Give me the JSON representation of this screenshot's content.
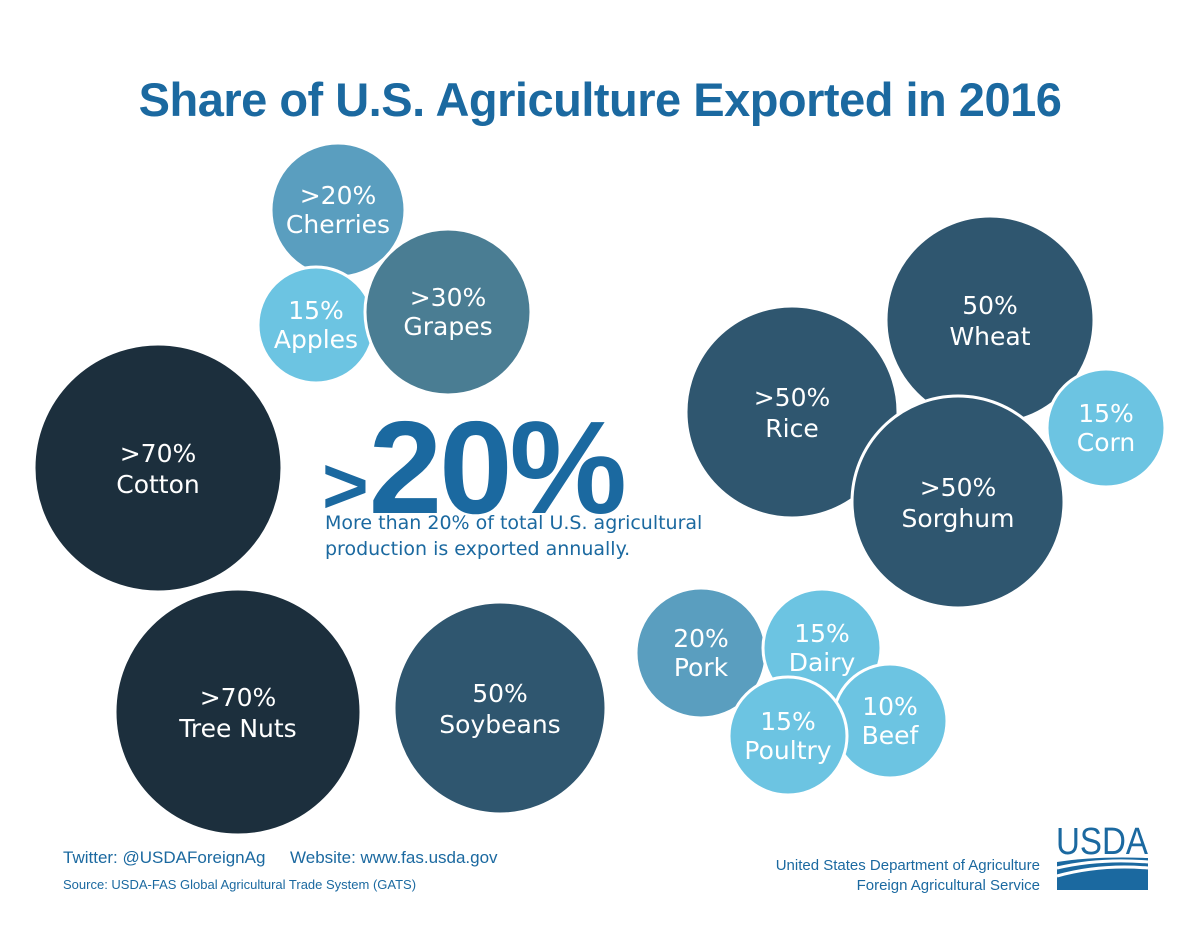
{
  "title": "Share of U.S. Agriculture Exported in 2016",
  "headline": {
    "prefix": ">",
    "value": "20%",
    "description": "More than 20% of total U.S. agricultural production is exported annually."
  },
  "colors": {
    "title": "#1b69a0",
    "darkest": "#1c2f3d",
    "dark": "#2f566f",
    "medium": "#4a7d93",
    "steel": "#5a9ebf",
    "light": "#6cc4e2"
  },
  "bubbles": [
    {
      "share": ">20%",
      "product": "Cherries",
      "color": "#5a9ebf"
    },
    {
      "share": "15%",
      "product": "Apples",
      "color": "#6cc4e2"
    },
    {
      "share": ">30%",
      "product": "Grapes",
      "color": "#4a7d93"
    },
    {
      "share": ">70%",
      "product": "Cotton",
      "color": "#1c2f3d"
    },
    {
      "share": ">70%",
      "product": "Tree Nuts",
      "color": "#1c2f3d"
    },
    {
      "share": "50%",
      "product": "Soybeans",
      "color": "#2f566f"
    },
    {
      "share": ">50%",
      "product": "Rice",
      "color": "#2f566f"
    },
    {
      "share": "50%",
      "product": "Wheat",
      "color": "#2f566f"
    },
    {
      "share": "15%",
      "product": "Corn",
      "color": "#6cc4e2"
    },
    {
      "share": ">50%",
      "product": "Sorghum",
      "color": "#2f566f"
    },
    {
      "share": "20%",
      "product": "Pork",
      "color": "#5a9ebf"
    },
    {
      "share": "15%",
      "product": "Dairy",
      "color": "#6cc4e2"
    },
    {
      "share": "10%",
      "product": "Beef",
      "color": "#6cc4e2"
    },
    {
      "share": "15%",
      "product": "Poultry",
      "color": "#6cc4e2"
    }
  ],
  "footer": {
    "twitter": "Twitter: @USDAForeignAg",
    "website": "Website: www.fas.usda.gov",
    "source": "Source: USDA-FAS Global Agricultural Trade System (GATS)",
    "org_line1": "United States Department of Agriculture",
    "org_line2": "Foreign Agricultural Service",
    "logo_text": "USDA"
  }
}
